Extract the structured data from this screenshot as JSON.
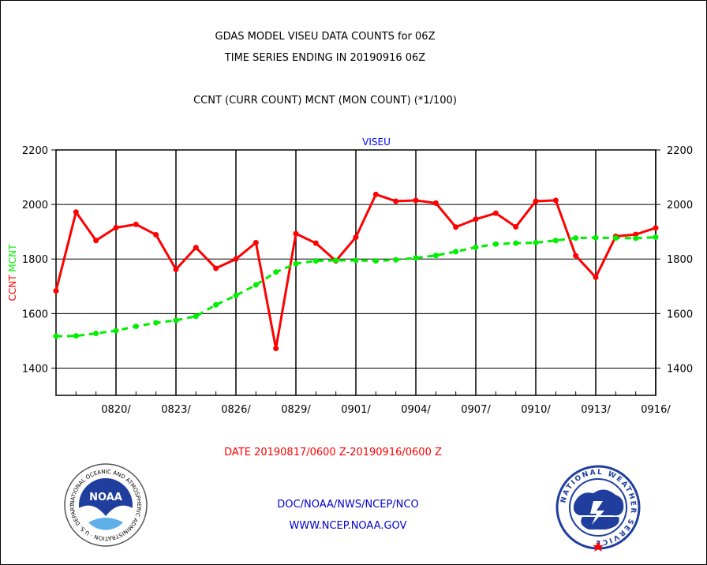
{
  "header": {
    "title_line1": "GDAS MODEL VISEU DATA COUNTS for 06Z",
    "title_line2": "TIME SERIES ENDING IN 20190916 06Z",
    "subtitle": "CCNT (CURR COUNT) MCNT (MON COUNT) (*1/100)"
  },
  "footer": {
    "date_range": "DATE 20190817/0600 Z-20190916/0600 Z",
    "org_path": "DOC/NOAA/NWS/NCEP/NCO",
    "website": "WWW.NCEP.NOAA.GOV",
    "noaa_logo_text": "NOAA",
    "noaa_ring_text": "NATIONAL OCEANIC AND ATMOSPHERIC ADMINISTRATION · U.S. DEPARTMENT OF COMMERCE ·",
    "nws_ring_text": "NATIONAL WEATHER SERVICE"
  },
  "colors": {
    "ccnt": "#ff0000",
    "mcnt": "#00ee00",
    "plot_label": "#0000ff",
    "date_label": "#ff0000"
  },
  "chart_data": {
    "type": "line",
    "title": "VISEU",
    "ylabel_parts": [
      "CCNT",
      "MCNT"
    ],
    "ylim": [
      1300,
      2200
    ],
    "yticks": [
      1400,
      1600,
      1800,
      2000,
      2200
    ],
    "ytick_labels": [
      "1400",
      "1600",
      "1800",
      "2000",
      "2200"
    ],
    "xtick_labels": [
      "0820/",
      "0823/",
      "0826/",
      "0829/",
      "0901/",
      "0904/",
      "0907/",
      "0910/",
      "0913/",
      "0916/"
    ],
    "grid": true,
    "x": [
      "0817",
      "0818",
      "0819",
      "0820",
      "0821",
      "0822",
      "0823",
      "0824",
      "0825",
      "0826",
      "0827",
      "0828",
      "0829",
      "0830",
      "0831",
      "0901",
      "0902",
      "0903",
      "0904",
      "0905",
      "0906",
      "0907",
      "0908",
      "0909",
      "0910",
      "0911",
      "0912",
      "0913",
      "0914",
      "0915",
      "0916"
    ],
    "series": [
      {
        "name": "CCNT",
        "color": "#ff0000",
        "values": [
          1683,
          1972,
          1868,
          1915,
          1927,
          1889,
          1762,
          1842,
          1766,
          1800,
          1860,
          1472,
          1893,
          1858,
          1793,
          1880,
          2037,
          2012,
          2015,
          2005,
          1917,
          1946,
          1968,
          1918,
          2012,
          2015,
          1812,
          1733,
          1883,
          1890,
          1914
        ]
      },
      {
        "name": "MCNT",
        "color": "#00ee00",
        "values": [
          1517,
          1518,
          1527,
          1537,
          1553,
          1566,
          1575,
          1590,
          1632,
          1666,
          1705,
          1752,
          1783,
          1793,
          1795,
          1795,
          1793,
          1797,
          1804,
          1813,
          1827,
          1843,
          1855,
          1858,
          1860,
          1868,
          1877,
          1878,
          1877,
          1876,
          1880
        ]
      }
    ]
  }
}
